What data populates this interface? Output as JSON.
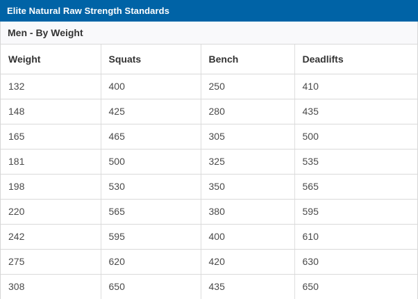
{
  "title": "Elite Natural Raw Strength Standards",
  "subtitle": "Men - By Weight",
  "colors": {
    "title_bar_bg": "#0063A6",
    "title_text": "#FFFFFF",
    "subtitle_bg": "#F9F9FB",
    "subtitle_text": "#333333",
    "header_text": "#333333",
    "cell_text": "#4A4A4A",
    "border": "#D9D9D9"
  },
  "chart_data": {
    "type": "table",
    "title": "Elite Natural Raw Strength Standards",
    "subtitle": "Men - By Weight",
    "columns": [
      "Weight",
      "Squats",
      "Bench",
      "Deadlifts"
    ],
    "rows": [
      [
        "132",
        "400",
        "250",
        "410"
      ],
      [
        "148",
        "425",
        "280",
        "435"
      ],
      [
        "165",
        "465",
        "305",
        "500"
      ],
      [
        "181",
        "500",
        "325",
        "535"
      ],
      [
        "198",
        "530",
        "350",
        "565"
      ],
      [
        "220",
        "565",
        "380",
        "595"
      ],
      [
        "242",
        "595",
        "400",
        "610"
      ],
      [
        "275",
        "620",
        "420",
        "630"
      ],
      [
        "308",
        "650",
        "435",
        "650"
      ]
    ]
  }
}
